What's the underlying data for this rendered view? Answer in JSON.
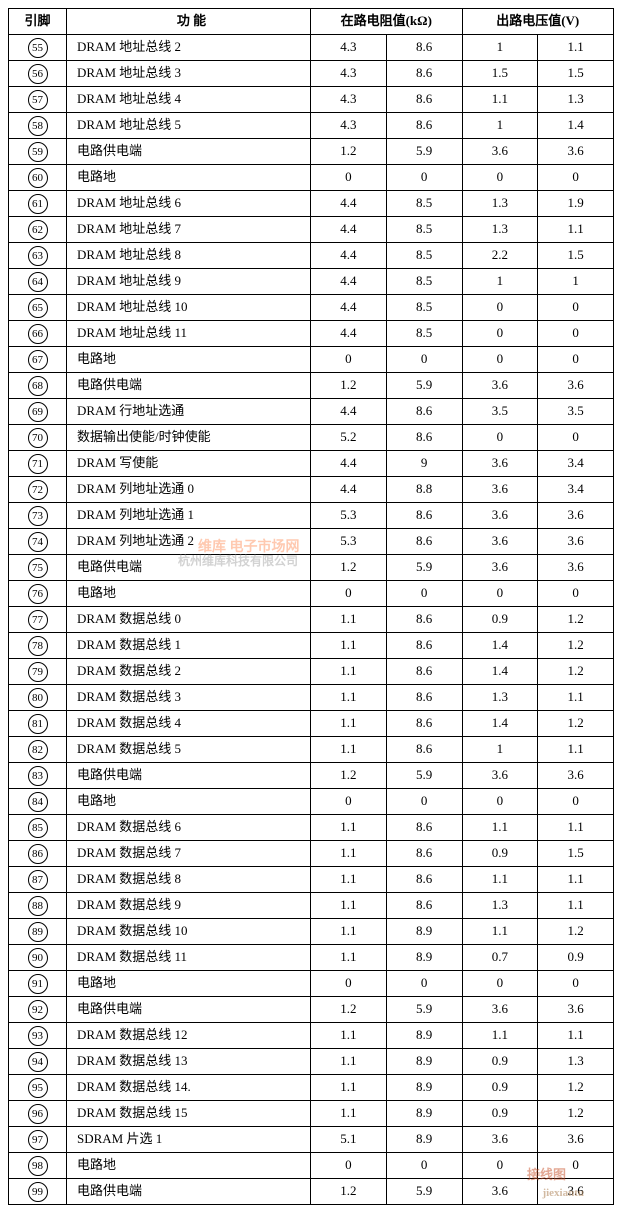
{
  "table": {
    "header": {
      "pin": "引脚",
      "func": "功 能",
      "resistance": "在路电阻值(kΩ)",
      "voltage": "出路电压值(V)"
    },
    "columns_width": {
      "pin": 58,
      "func": 244,
      "r1": 75,
      "r2": 75,
      "v1": 75,
      "v2": 75
    },
    "border_color": "#000000",
    "background_color": "#ffffff",
    "font_size": 13,
    "rows": [
      {
        "pin": "55",
        "func": "DRAM 地址总线 2",
        "r1": "4.3",
        "r2": "8.6",
        "v1": "1",
        "v2": "1.1"
      },
      {
        "pin": "56",
        "func": "DRAM 地址总线 3",
        "r1": "4.3",
        "r2": "8.6",
        "v1": "1.5",
        "v2": "1.5"
      },
      {
        "pin": "57",
        "func": "DRAM 地址总线 4",
        "r1": "4.3",
        "r2": "8.6",
        "v1": "1.1",
        "v2": "1.3"
      },
      {
        "pin": "58",
        "func": "DRAM 地址总线 5",
        "r1": "4.3",
        "r2": "8.6",
        "v1": "1",
        "v2": "1.4"
      },
      {
        "pin": "59",
        "func": "电路供电端",
        "r1": "1.2",
        "r2": "5.9",
        "v1": "3.6",
        "v2": "3.6"
      },
      {
        "pin": "60",
        "func": "电路地",
        "r1": "0",
        "r2": "0",
        "v1": "0",
        "v2": "0"
      },
      {
        "pin": "61",
        "func": "DRAM 地址总线 6",
        "r1": "4.4",
        "r2": "8.5",
        "v1": "1.3",
        "v2": "1.9"
      },
      {
        "pin": "62",
        "func": "DRAM 地址总线 7",
        "r1": "4.4",
        "r2": "8.5",
        "v1": "1.3",
        "v2": "1.1"
      },
      {
        "pin": "63",
        "func": "DRAM 地址总线 8",
        "r1": "4.4",
        "r2": "8.5",
        "v1": "2.2",
        "v2": "1.5"
      },
      {
        "pin": "64",
        "func": "DRAM 地址总线 9",
        "r1": "4.4",
        "r2": "8.5",
        "v1": "1",
        "v2": "1"
      },
      {
        "pin": "65",
        "func": "DRAM 地址总线 10",
        "r1": "4.4",
        "r2": "8.5",
        "v1": "0",
        "v2": "0"
      },
      {
        "pin": "66",
        "func": "DRAM 地址总线 11",
        "r1": "4.4",
        "r2": "8.5",
        "v1": "0",
        "v2": "0"
      },
      {
        "pin": "67",
        "func": "电路地",
        "r1": "0",
        "r2": "0",
        "v1": "0",
        "v2": "0"
      },
      {
        "pin": "68",
        "func": "电路供电端",
        "r1": "1.2",
        "r2": "5.9",
        "v1": "3.6",
        "v2": "3.6"
      },
      {
        "pin": "69",
        "func": "DRAM 行地址选通",
        "r1": "4.4",
        "r2": "8.6",
        "v1": "3.5",
        "v2": "3.5"
      },
      {
        "pin": "70",
        "func": "数据输出使能/时钟使能",
        "r1": "5.2",
        "r2": "8.6",
        "v1": "0",
        "v2": "0"
      },
      {
        "pin": "71",
        "func": "DRAM 写使能",
        "r1": "4.4",
        "r2": "9",
        "v1": "3.6",
        "v2": "3.4"
      },
      {
        "pin": "72",
        "func": "DRAM 列地址选通 0",
        "r1": "4.4",
        "r2": "8.8",
        "v1": "3.6",
        "v2": "3.4"
      },
      {
        "pin": "73",
        "func": "DRAM 列地址选通 1",
        "r1": "5.3",
        "r2": "8.6",
        "v1": "3.6",
        "v2": "3.6"
      },
      {
        "pin": "74",
        "func": "DRAM 列地址选通 2",
        "r1": "5.3",
        "r2": "8.6",
        "v1": "3.6",
        "v2": "3.6"
      },
      {
        "pin": "75",
        "func": "电路供电端",
        "r1": "1.2",
        "r2": "5.9",
        "v1": "3.6",
        "v2": "3.6"
      },
      {
        "pin": "76",
        "func": "电路地",
        "r1": "0",
        "r2": "0",
        "v1": "0",
        "v2": "0"
      },
      {
        "pin": "77",
        "func": "DRAM 数据总线 0",
        "r1": "1.1",
        "r2": "8.6",
        "v1": "0.9",
        "v2": "1.2"
      },
      {
        "pin": "78",
        "func": "DRAM 数据总线 1",
        "r1": "1.1",
        "r2": "8.6",
        "v1": "1.4",
        "v2": "1.2"
      },
      {
        "pin": "79",
        "func": "DRAM 数据总线 2",
        "r1": "1.1",
        "r2": "8.6",
        "v1": "1.4",
        "v2": "1.2"
      },
      {
        "pin": "80",
        "func": "DRAM 数据总线 3",
        "r1": "1.1",
        "r2": "8.6",
        "v1": "1.3",
        "v2": "1.1"
      },
      {
        "pin": "81",
        "func": "DRAM 数据总线 4",
        "r1": "1.1",
        "r2": "8.6",
        "v1": "1.4",
        "v2": "1.2"
      },
      {
        "pin": "82",
        "func": "DRAM 数据总线 5",
        "r1": "1.1",
        "r2": "8.6",
        "v1": "1",
        "v2": "1.1"
      },
      {
        "pin": "83",
        "func": "电路供电端",
        "r1": "1.2",
        "r2": "5.9",
        "v1": "3.6",
        "v2": "3.6"
      },
      {
        "pin": "84",
        "func": "电路地",
        "r1": "0",
        "r2": "0",
        "v1": "0",
        "v2": "0"
      },
      {
        "pin": "85",
        "func": "DRAM 数据总线 6",
        "r1": "1.1",
        "r2": "8.6",
        "v1": "1.1",
        "v2": "1.1"
      },
      {
        "pin": "86",
        "func": "DRAM 数据总线 7",
        "r1": "1.1",
        "r2": "8.6",
        "v1": "0.9",
        "v2": "1.5"
      },
      {
        "pin": "87",
        "func": "DRAM 数据总线 8",
        "r1": "1.1",
        "r2": "8.6",
        "v1": "1.1",
        "v2": "1.1"
      },
      {
        "pin": "88",
        "func": "DRAM 数据总线 9",
        "r1": "1.1",
        "r2": "8.6",
        "v1": "1.3",
        "v2": "1.1"
      },
      {
        "pin": "89",
        "func": "DRAM 数据总线 10",
        "r1": "1.1",
        "r2": "8.9",
        "v1": "1.1",
        "v2": "1.2"
      },
      {
        "pin": "90",
        "func": "DRAM 数据总线 11",
        "r1": "1.1",
        "r2": "8.9",
        "v1": "0.7",
        "v2": "0.9"
      },
      {
        "pin": "91",
        "func": "电路地",
        "r1": "0",
        "r2": "0",
        "v1": "0",
        "v2": "0"
      },
      {
        "pin": "92",
        "func": "电路供电端",
        "r1": "1.2",
        "r2": "5.9",
        "v1": "3.6",
        "v2": "3.6"
      },
      {
        "pin": "93",
        "func": "DRAM 数据总线 12",
        "r1": "1.1",
        "r2": "8.9",
        "v1": "1.1",
        "v2": "1.1"
      },
      {
        "pin": "94",
        "func": "DRAM 数据总线 13",
        "r1": "1.1",
        "r2": "8.9",
        "v1": "0.9",
        "v2": "1.3"
      },
      {
        "pin": "95",
        "func": "DRAM 数据总线 14.",
        "r1": "1.1",
        "r2": "8.9",
        "v1": "0.9",
        "v2": "1.2"
      },
      {
        "pin": "96",
        "func": "DRAM 数据总线 15",
        "r1": "1.1",
        "r2": "8.9",
        "v1": "0.9",
        "v2": "1.2"
      },
      {
        "pin": "97",
        "func": "SDRAM 片选 1",
        "r1": "5.1",
        "r2": "8.9",
        "v1": "3.6",
        "v2": "3.6"
      },
      {
        "pin": "98",
        "func": "电路地",
        "r1": "0",
        "r2": "0",
        "v1": "0",
        "v2": "0"
      },
      {
        "pin": "99",
        "func": "电路供电端",
        "r1": "1.2",
        "r2": "5.9",
        "v1": "3.6",
        "v2": "3.6"
      }
    ]
  },
  "watermarks": {
    "wm1": "维库 电子市场网",
    "wm2": "杭州维库科技有限公司",
    "wm3": "jiexiantu",
    "wm4": "接线图"
  }
}
